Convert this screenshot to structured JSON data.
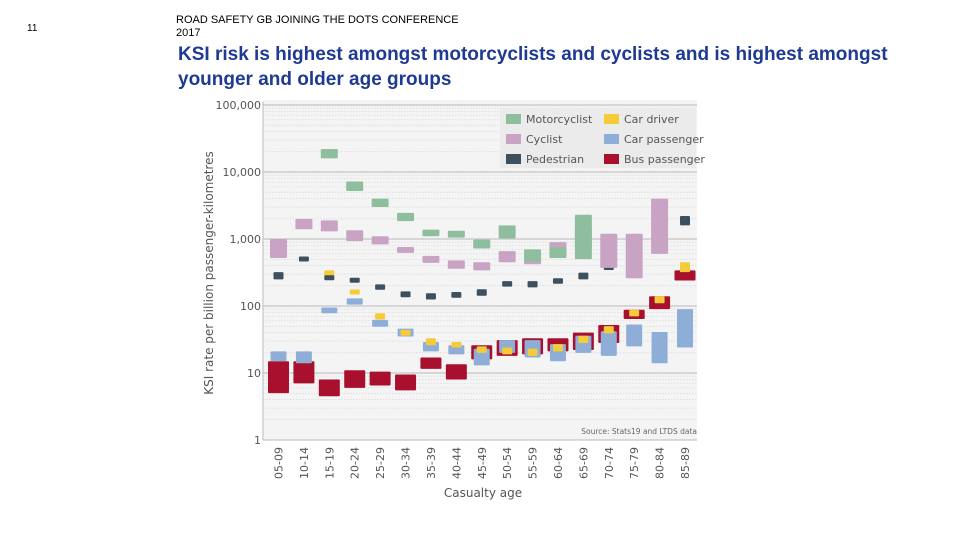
{
  "slide_number": "11",
  "conference": "ROAD SAFETY GB JOINING THE DOTS CONFERENCE 2017",
  "title": "KSI risk is highest amongst motorcyclists and cyclists and is highest amongst younger and older age groups",
  "chart_data": {
    "type": "range-bar",
    "scale": "log",
    "ylabel": "KSI rate per billion passenger-kilometres",
    "xlabel": "Casualty age",
    "source": "Source: Stats19 and LTDS data",
    "ylim": [
      1,
      100000
    ],
    "y_ticks": [
      {
        "value": 100000,
        "label": "100,000"
      },
      {
        "value": 10000,
        "label": "10,000"
      },
      {
        "value": 1000,
        "label": "1,000"
      },
      {
        "value": 100,
        "label": "100"
      },
      {
        "value": 10,
        "label": "10"
      },
      {
        "value": 1,
        "label": "1"
      }
    ],
    "categories": [
      "05-09",
      "10-14",
      "15-19",
      "20-24",
      "25-29",
      "30-34",
      "35-39",
      "40-44",
      "45-49",
      "50-54",
      "55-59",
      "60-64",
      "65-69",
      "70-74",
      "75-79",
      "80-84",
      "85-89"
    ],
    "legend_position": "top-right",
    "series": [
      {
        "name": "Motorcyclist",
        "color": "#8fbe9f",
        "ranges": [
          null,
          null,
          [
            16000,
            22000
          ],
          [
            5200,
            7200
          ],
          [
            3000,
            4000
          ],
          [
            1850,
            2450
          ],
          [
            1100,
            1380
          ],
          [
            1050,
            1330
          ],
          [
            720,
            980
          ],
          [
            1020,
            1600
          ],
          [
            460,
            700
          ],
          [
            520,
            760
          ],
          [
            500,
            2300
          ],
          null,
          null,
          null,
          null
        ]
      },
      {
        "name": "Cyclist",
        "color": "#c9a3c3",
        "ranges": [
          [
            520,
            1000
          ],
          [
            1400,
            2000
          ],
          [
            1300,
            1900
          ],
          [
            930,
            1350
          ],
          [
            830,
            1100
          ],
          [
            620,
            760
          ],
          [
            440,
            560
          ],
          [
            360,
            480
          ],
          [
            340,
            450
          ],
          [
            450,
            660
          ],
          [
            420,
            620
          ],
          [
            560,
            900
          ],
          [
            700,
            1500
          ],
          [
            370,
            1200
          ],
          [
            260,
            1200
          ],
          [
            600,
            4000
          ],
          null
        ]
      },
      {
        "name": "Pedestrian",
        "color": "#3d5060",
        "ranges": [
          [
            250,
            320
          ],
          [
            470,
            540
          ],
          [
            245,
            285
          ],
          [
            225,
            260
          ],
          [
            175,
            210
          ],
          [
            135,
            165
          ],
          [
            125,
            155
          ],
          [
            133,
            162
          ],
          [
            142,
            178
          ],
          [
            195,
            235
          ],
          [
            190,
            235
          ],
          [
            215,
            260
          ],
          [
            250,
            315
          ],
          [
            345,
            430
          ],
          [
            470,
            650
          ],
          [
            690,
            930
          ],
          [
            1600,
            2200
          ]
        ]
      },
      {
        "name": "Car driver",
        "color": "#f5cb3a",
        "ranges": [
          null,
          null,
          [
            270,
            340
          ],
          [
            150,
            175
          ],
          [
            63,
            78
          ],
          [
            36,
            44
          ],
          [
            26,
            33
          ],
          [
            24,
            29
          ],
          [
            20,
            25
          ],
          [
            19,
            24
          ],
          [
            18,
            23
          ],
          [
            21,
            27
          ],
          [
            28,
            36
          ],
          [
            39,
            50
          ],
          [
            70,
            88
          ],
          [
            110,
            140
          ],
          [
            320,
            450
          ]
        ]
      },
      {
        "name": "Car passenger",
        "color": "#8eaed8",
        "ranges": [
          [
            15,
            21
          ],
          [
            14,
            21
          ],
          [
            78,
            95
          ],
          [
            105,
            130
          ],
          [
            49,
            62
          ],
          [
            35,
            46
          ],
          [
            21,
            29
          ],
          [
            19,
            26
          ],
          [
            13,
            23
          ],
          [
            20,
            31
          ],
          [
            17,
            31
          ],
          [
            15,
            27
          ],
          [
            20,
            36
          ],
          [
            18,
            42
          ],
          [
            25,
            53
          ],
          [
            14,
            41
          ],
          [
            24,
            90
          ]
        ]
      },
      {
        "name": "Bus passenger",
        "color": "#a8102e",
        "ranges": [
          [
            5,
            15
          ],
          [
            7,
            15
          ],
          [
            4.5,
            8
          ],
          [
            6,
            11
          ],
          [
            6.5,
            10.5
          ],
          [
            5.5,
            9.5
          ],
          [
            11.5,
            17
          ],
          [
            8,
            13.5
          ],
          [
            16,
            26
          ],
          [
            18,
            31
          ],
          [
            19,
            33
          ],
          [
            21,
            33
          ],
          [
            22,
            40
          ],
          [
            28,
            52
          ],
          [
            64,
            88
          ],
          [
            90,
            140
          ],
          [
            240,
            340
          ]
        ]
      }
    ]
  }
}
